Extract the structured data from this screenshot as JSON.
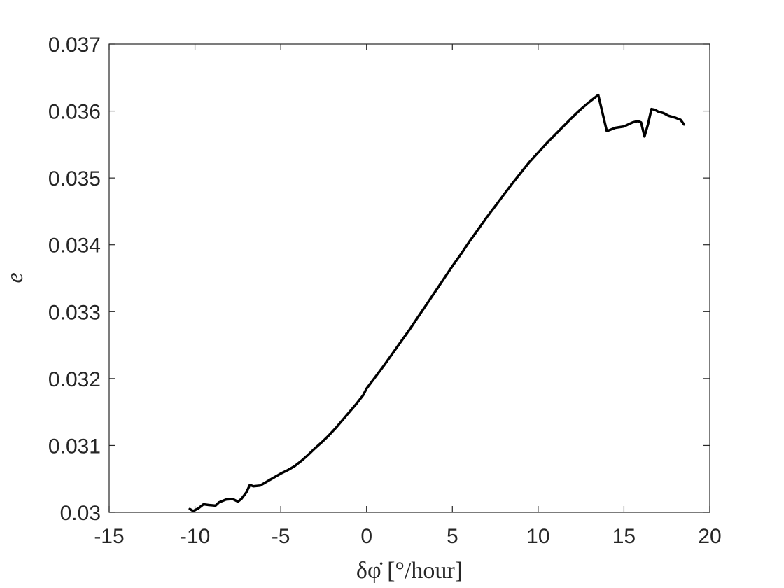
{
  "chart_data": {
    "type": "line",
    "title": "",
    "xlabel": "δφ̇ [°/hour]",
    "ylabel": "e",
    "xlim": [
      -15,
      20
    ],
    "ylim": [
      0.03,
      0.037
    ],
    "xticks": [
      -15,
      -10,
      -5,
      0,
      5,
      10,
      15,
      20
    ],
    "xtick_labels": [
      "-15",
      "-10",
      "-5",
      "0",
      "5",
      "10",
      "15",
      "20"
    ],
    "yticks": [
      0.03,
      0.031,
      0.032,
      0.033,
      0.034,
      0.035,
      0.036,
      0.037
    ],
    "ytick_labels": [
      "0.03",
      "0.031",
      "0.032",
      "0.033",
      "0.034",
      "0.035",
      "0.036",
      "0.037"
    ],
    "grid": false,
    "line_color": "#000000",
    "series": [
      {
        "x": [
          -10.3,
          -10.1,
          -9.8,
          -9.5,
          -9.2,
          -8.8,
          -8.6,
          -8.2,
          -7.8,
          -7.5,
          -7.3,
          -7.0,
          -6.8,
          -6.6,
          -6.2,
          -5.8,
          -5.4,
          -5.0,
          -4.6,
          -4.2,
          -3.8,
          -3.4,
          -3.0,
          -2.6,
          -2.2,
          -1.8,
          -1.4,
          -1.0,
          -0.6,
          -0.2,
          0.0,
          0.5,
          1.0,
          1.5,
          2.0,
          2.5,
          3.0,
          3.5,
          4.0,
          4.5,
          5.0,
          5.5,
          6.0,
          6.5,
          7.0,
          7.5,
          8.0,
          8.5,
          9.0,
          9.5,
          10.0,
          10.5,
          11.0,
          11.5,
          12.0,
          12.5,
          13.0,
          13.5,
          14.0,
          14.5,
          15.0,
          15.5,
          15.8,
          16.0,
          16.2,
          16.4,
          16.6,
          16.8,
          17.0,
          17.3,
          17.6,
          18.0,
          18.3,
          18.5
        ],
        "y": [
          0.03005,
          0.03002,
          0.03006,
          0.03012,
          0.03011,
          0.0301,
          0.03015,
          0.03019,
          0.0302,
          0.03016,
          0.0302,
          0.0303,
          0.03041,
          0.03039,
          0.0304,
          0.03046,
          0.03052,
          0.03058,
          0.03063,
          0.03069,
          0.03077,
          0.03086,
          0.03096,
          0.03105,
          0.03115,
          0.03126,
          0.03138,
          0.0315,
          0.03162,
          0.03175,
          0.03185,
          0.03202,
          0.03219,
          0.03237,
          0.03255,
          0.03273,
          0.03292,
          0.03311,
          0.0333,
          0.03349,
          0.03368,
          0.03386,
          0.03405,
          0.03423,
          0.03441,
          0.03458,
          0.03475,
          0.03492,
          0.03508,
          0.03524,
          0.03538,
          0.03552,
          0.03565,
          0.03578,
          0.03591,
          0.03603,
          0.03614,
          0.03624,
          0.0357,
          0.03575,
          0.03577,
          0.03583,
          0.03585,
          0.03583,
          0.03562,
          0.0358,
          0.03603,
          0.03602,
          0.03599,
          0.03597,
          0.03593,
          0.0359,
          0.03587,
          0.0358
        ]
      }
    ]
  }
}
